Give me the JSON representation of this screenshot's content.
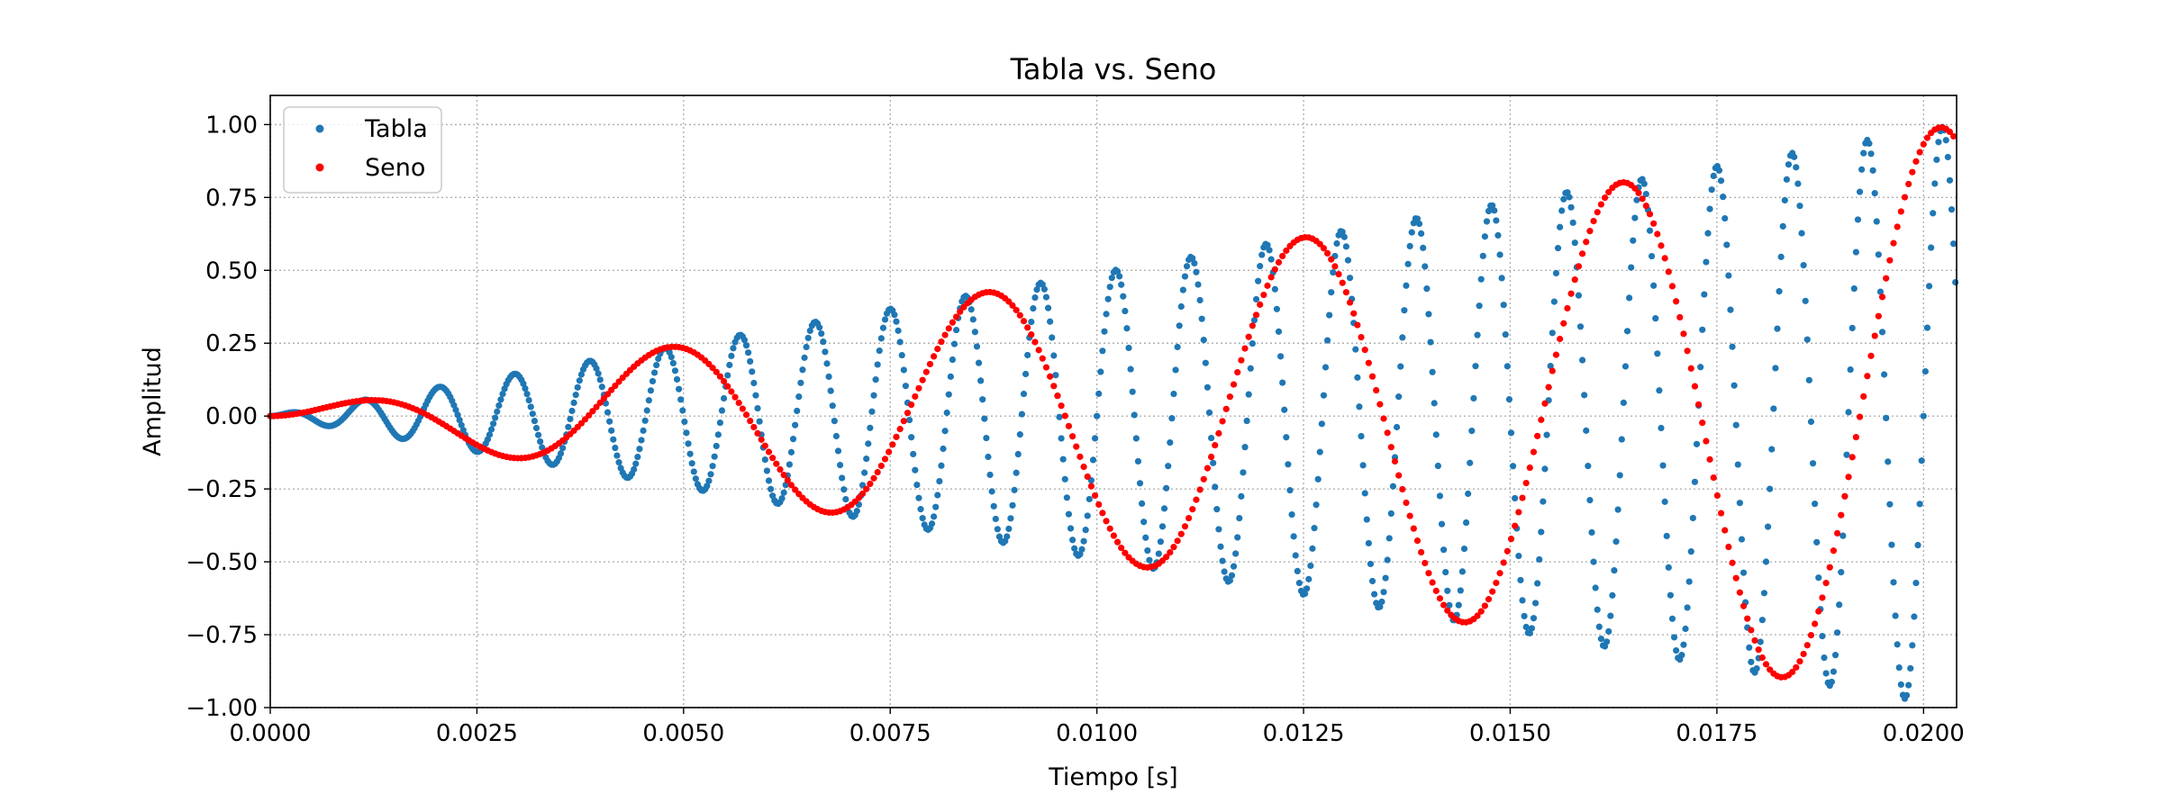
{
  "chart_data": {
    "type": "scatter",
    "title": "Tabla vs. Seno",
    "xlabel": "Tiempo [s]",
    "ylabel": "Amplitud",
    "xlim": [
      0,
      0.0204
    ],
    "ylim": [
      -1.0,
      1.1
    ],
    "grid": true,
    "legend_position": "top-left",
    "x_ticks": [
      0.0,
      0.0025,
      0.005,
      0.0075,
      0.01,
      0.0125,
      0.015,
      0.0175,
      0.02
    ],
    "x_tick_labels": [
      "0.0000",
      "0.0025",
      "0.0050",
      "0.0075",
      "0.0100",
      "0.0125",
      "0.0150",
      "0.0175",
      "0.0200"
    ],
    "y_ticks": [
      -1.0,
      -0.75,
      -0.5,
      -0.25,
      0.0,
      0.25,
      0.5,
      0.75,
      1.0
    ],
    "y_tick_labels": [
      "−1.00",
      "−0.75",
      "−0.50",
      "−0.25",
      "0.00",
      "0.25",
      "0.50",
      "0.75",
      "1.00"
    ],
    "series": [
      {
        "name": "Tabla",
        "color": "#1f77b4",
        "marker": "dot",
        "amplitude_envelope": {
          "x": [
            0.0,
            0.0204
          ],
          "y": [
            0.0,
            1.0
          ]
        },
        "frequency_hz": 1100,
        "peaks": [
          {
            "x": 0.00115,
            "y": 0.05
          },
          {
            "x": 0.00205,
            "y": 0.1
          },
          {
            "x": 0.003,
            "y": 0.14
          },
          {
            "x": 0.0039,
            "y": 0.19
          },
          {
            "x": 0.00485,
            "y": 0.24
          },
          {
            "x": 0.00565,
            "y": 0.28
          },
          {
            "x": 0.0066,
            "y": 0.33
          },
          {
            "x": 0.00755,
            "y": 0.37
          },
          {
            "x": 0.00845,
            "y": 0.41
          },
          {
            "x": 0.0093,
            "y": 0.46
          },
          {
            "x": 0.01025,
            "y": 0.51
          },
          {
            "x": 0.0111,
            "y": 0.55
          },
          {
            "x": 0.012,
            "y": 0.6
          },
          {
            "x": 0.01295,
            "y": 0.64
          },
          {
            "x": 0.0138,
            "y": 0.69
          },
          {
            "x": 0.0147,
            "y": 0.73
          },
          {
            "x": 0.0157,
            "y": 0.78
          },
          {
            "x": 0.0166,
            "y": 0.82
          },
          {
            "x": 0.01745,
            "y": 0.87
          },
          {
            "x": 0.0184,
            "y": 0.91
          },
          {
            "x": 0.0193,
            "y": 0.96
          },
          {
            "x": 0.0202,
            "y": 1.0
          }
        ]
      },
      {
        "name": "Seno",
        "color": "#ff0000",
        "marker": "dot",
        "amplitude_envelope": {
          "x": [
            0.0,
            0.0204
          ],
          "y": [
            0.0,
            1.0
          ]
        },
        "frequency_hz": 260,
        "peaks": [
          {
            "x": 0.0011,
            "y": 0.05
          },
          {
            "x": 0.003,
            "y": -0.14
          },
          {
            "x": 0.0049,
            "y": 0.24
          },
          {
            "x": 0.0068,
            "y": -0.33
          },
          {
            "x": 0.0087,
            "y": 0.43
          },
          {
            "x": 0.0106,
            "y": -0.52
          },
          {
            "x": 0.0125,
            "y": 0.62
          },
          {
            "x": 0.0144,
            "y": -0.72
          },
          {
            "x": 0.0163,
            "y": 0.81
          },
          {
            "x": 0.0182,
            "y": -0.91
          },
          {
            "x": 0.0201,
            "y": 1.0
          }
        ]
      }
    ]
  },
  "colors": {
    "background": "#ffffff",
    "grid": "#b0b0b0",
    "axis": "#000000",
    "tabla": "#1f77b4",
    "seno": "#ff0000"
  }
}
